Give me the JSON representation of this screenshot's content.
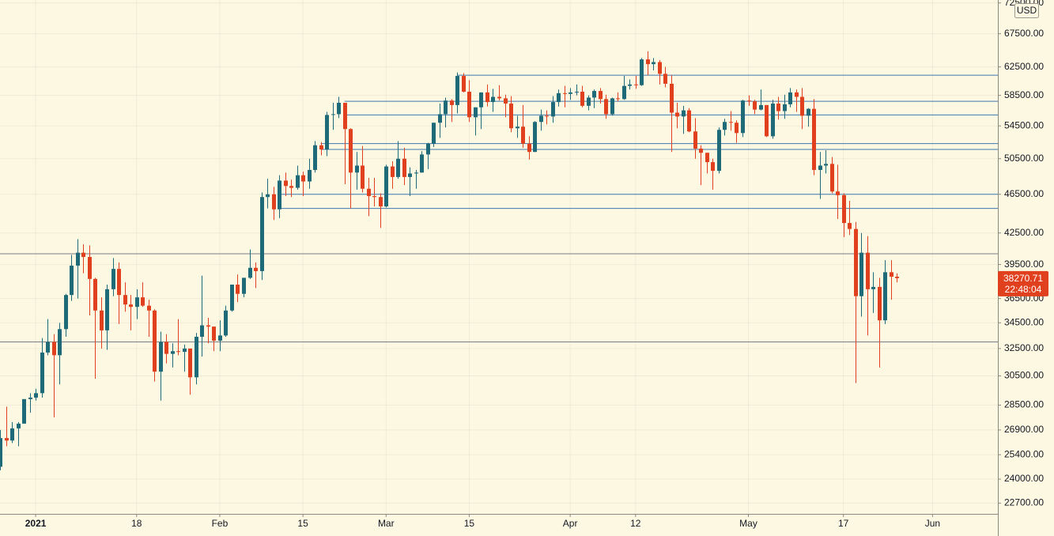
{
  "chart_data": {
    "type": "candlestick",
    "background": "#fdf8e2",
    "up_color": "#1f6a79",
    "down_color": "#e0401d",
    "log_scale": true,
    "grid": true,
    "currency": "USD",
    "countdown": "22:48:04",
    "xlim": [
      "2020-12-26",
      "2021-06-12"
    ],
    "xticks": [
      {
        "value": "2021-01-01",
        "label": "2021"
      },
      {
        "value": "2021-01-18",
        "label": "18"
      },
      {
        "value": "2021-02-01",
        "label": "Feb"
      },
      {
        "value": "2021-02-15",
        "label": "15"
      },
      {
        "value": "2021-03-01",
        "label": "Mar"
      },
      {
        "value": "2021-03-15",
        "label": "15"
      },
      {
        "value": "2021-04-01",
        "label": "Apr"
      },
      {
        "value": "2021-04-12",
        "label": "12"
      },
      {
        "value": "2021-05-01",
        "label": "May"
      },
      {
        "value": "2021-05-17",
        "label": "17"
      },
      {
        "value": "2021-06-01",
        "label": "Jun"
      }
    ],
    "ylim": [
      22140,
      73000
    ],
    "yticks": [
      {
        "value": 72500,
        "label": "72500.00"
      },
      {
        "value": 67500,
        "label": "67500.00"
      },
      {
        "value": 62500,
        "label": "62500.00"
      },
      {
        "value": 58500,
        "label": "58500.00"
      },
      {
        "value": 54500,
        "label": "54500.00"
      },
      {
        "value": 50500,
        "label": "50500.00"
      },
      {
        "value": 46500,
        "label": "46500.00"
      },
      {
        "value": 42500,
        "label": "42500.00"
      },
      {
        "value": 39500,
        "label": "39500.00"
      },
      {
        "value": 36500,
        "label": "36500.00"
      },
      {
        "value": 34500,
        "label": "34500.00"
      },
      {
        "value": 32500,
        "label": "32500.00"
      },
      {
        "value": 30500,
        "label": "30500.00"
      },
      {
        "value": 28500,
        "label": "28500.00"
      },
      {
        "value": 26900,
        "label": "26900.00"
      },
      {
        "value": 25400,
        "label": "25400.00"
      },
      {
        "value": 24000,
        "label": "24000.00"
      },
      {
        "value": 22700,
        "label": "22700.00"
      }
    ],
    "lines": [
      {
        "value": 61300,
        "color": "#3d78b0",
        "start": "2021-03-13"
      },
      {
        "value": 57700,
        "color": "#3d78b0",
        "start": "2021-02-22"
      },
      {
        "value": 55900,
        "color": "#3d78b0",
        "start": "2021-02-22"
      },
      {
        "value": 52300,
        "color": "#3d78b0",
        "start": "2021-02-18"
      },
      {
        "value": 51600,
        "color": "#3d78b0",
        "start": "2021-02-18"
      },
      {
        "value": 46500,
        "color": "#3d78b0",
        "start": "2021-02-11"
      },
      {
        "value": 45000,
        "color": "#3d78b0",
        "start": "2021-02-11"
      },
      {
        "value": 40500,
        "color": "#7b7d85",
        "start": "2020-12-26"
      },
      {
        "value": 33000,
        "color": "#7b7d85",
        "start": "2020-12-26"
      }
    ],
    "x": [
      "2020-12-26",
      "2020-12-27",
      "2020-12-28",
      "2020-12-29",
      "2020-12-30",
      "2020-12-31",
      "2021-01-01",
      "2021-01-02",
      "2021-01-03",
      "2021-01-04",
      "2021-01-05",
      "2021-01-06",
      "2021-01-07",
      "2021-01-08",
      "2021-01-09",
      "2021-01-10",
      "2021-01-11",
      "2021-01-12",
      "2021-01-13",
      "2021-01-14",
      "2021-01-15",
      "2021-01-16",
      "2021-01-17",
      "2021-01-18",
      "2021-01-19",
      "2021-01-20",
      "2021-01-21",
      "2021-01-22",
      "2021-01-23",
      "2021-01-24",
      "2021-01-25",
      "2021-01-26",
      "2021-01-27",
      "2021-01-28",
      "2021-01-29",
      "2021-01-30",
      "2021-01-31",
      "2021-02-01",
      "2021-02-02",
      "2021-02-03",
      "2021-02-04",
      "2021-02-05",
      "2021-02-06",
      "2021-02-07",
      "2021-02-08",
      "2021-02-09",
      "2021-02-10",
      "2021-02-11",
      "2021-02-12",
      "2021-02-13",
      "2021-02-14",
      "2021-02-15",
      "2021-02-16",
      "2021-02-17",
      "2021-02-18",
      "2021-02-19",
      "2021-02-20",
      "2021-02-21",
      "2021-02-22",
      "2021-02-23",
      "2021-02-24",
      "2021-02-25",
      "2021-02-26",
      "2021-02-27",
      "2021-02-28",
      "2021-03-01",
      "2021-03-02",
      "2021-03-03",
      "2021-03-04",
      "2021-03-05",
      "2021-03-06",
      "2021-03-07",
      "2021-03-08",
      "2021-03-09",
      "2021-03-10",
      "2021-03-11",
      "2021-03-12",
      "2021-03-13",
      "2021-03-14",
      "2021-03-15",
      "2021-03-16",
      "2021-03-17",
      "2021-03-18",
      "2021-03-19",
      "2021-03-20",
      "2021-03-21",
      "2021-03-22",
      "2021-03-23",
      "2021-03-24",
      "2021-03-25",
      "2021-03-26",
      "2021-03-27",
      "2021-03-28",
      "2021-03-29",
      "2021-03-30",
      "2021-03-31",
      "2021-04-01",
      "2021-04-02",
      "2021-04-03",
      "2021-04-04",
      "2021-04-05",
      "2021-04-06",
      "2021-04-07",
      "2021-04-08",
      "2021-04-09",
      "2021-04-10",
      "2021-04-11",
      "2021-04-12",
      "2021-04-13",
      "2021-04-14",
      "2021-04-15",
      "2021-04-16",
      "2021-04-17",
      "2021-04-18",
      "2021-04-19",
      "2021-04-20",
      "2021-04-21",
      "2021-04-22",
      "2021-04-23",
      "2021-04-24",
      "2021-04-25",
      "2021-04-26",
      "2021-04-27",
      "2021-04-28",
      "2021-04-29",
      "2021-04-30",
      "2021-05-01",
      "2021-05-02",
      "2021-05-03",
      "2021-05-04",
      "2021-05-05",
      "2021-05-06",
      "2021-05-07",
      "2021-05-08",
      "2021-05-09",
      "2021-05-10",
      "2021-05-11",
      "2021-05-12",
      "2021-05-13",
      "2021-05-14",
      "2021-05-15",
      "2021-05-16",
      "2021-05-17",
      "2021-05-18",
      "2021-05-19",
      "2021-05-20",
      "2021-05-21",
      "2021-05-22",
      "2021-05-23",
      "2021-05-24",
      "2021-05-25",
      "2021-05-26"
    ],
    "open": [
      24700,
      26400,
      26250,
      27000,
      27300,
      28900,
      29000,
      29300,
      32200,
      33000,
      32000,
      34000,
      36800,
      39400,
      40600,
      40200,
      38200,
      35500,
      33900,
      37300,
      39100,
      36800,
      36000,
      35800,
      36600,
      35900,
      35500,
      30800,
      33000,
      32100,
      32300,
      32250,
      32500,
      30400,
      33400,
      34300,
      34200,
      33100,
      33500,
      35500,
      37700,
      36900,
      38300,
      39200,
      38900,
      46200,
      46500,
      44900,
      48000,
      47400,
      47200,
      48600,
      47900,
      49200,
      52100,
      51600,
      55900,
      56000,
      57500,
      54100,
      48900,
      49700,
      47100,
      46300,
      46200,
      45200,
      49600,
      48400,
      50500,
      48400,
      48800,
      48900,
      51000,
      52300,
      54900,
      56000,
      57800,
      57200,
      61200,
      59000,
      55600,
      56900,
      58900,
      57600,
      58300,
      58100,
      57400,
      54200,
      54400,
      52300,
      51300,
      55000,
      55800,
      55700,
      57600,
      58800,
      58700,
      58900,
      59000,
      57100,
      58200,
      59100,
      58000,
      56000,
      58100,
      58000,
      59800,
      60000,
      59900,
      63600,
      62900,
      63200,
      61500,
      60100,
      56200,
      55700,
      56500,
      53800,
      51700,
      51200,
      50100,
      49100,
      54000,
      55000,
      54900,
      53600,
      57800,
      57700,
      56600,
      57200,
      53200,
      57400,
      56400,
      57300,
      58900,
      58300,
      55800,
      56700,
      49200,
      49700,
      49900,
      46800,
      46400,
      43500,
      42900,
      36700,
      40600,
      37300,
      37500,
      34700,
      38800,
      38400
    ],
    "high": [
      26900,
      28400,
      27400,
      27400,
      28900,
      29300,
      29600,
      33300,
      34800,
      33600,
      34500,
      36900,
      40400,
      41900,
      41400,
      41300,
      38300,
      36600,
      37700,
      40100,
      39700,
      37900,
      36800,
      37300,
      37900,
      36400,
      35600,
      33800,
      33600,
      32900,
      34800,
      32800,
      32500,
      33700,
      38500,
      34900,
      34200,
      34700,
      35900,
      37700,
      38600,
      38300,
      40900,
      39700,
      46700,
      48200,
      47300,
      48600,
      48900,
      48100,
      49700,
      49000,
      50500,
      52600,
      52500,
      56300,
      57500,
      58300,
      57500,
      54200,
      51300,
      52000,
      48300,
      48300,
      46600,
      49800,
      50200,
      52600,
      51800,
      49500,
      49200,
      51400,
      52400,
      54900,
      57400,
      58200,
      58000,
      61700,
      61600,
      60600,
      56900,
      58900,
      60000,
      59400,
      59900,
      58600,
      58400,
      55800,
      57200,
      53200,
      55100,
      56600,
      56500,
      58400,
      59300,
      59800,
      59500,
      60000,
      59800,
      58500,
      59300,
      59500,
      58600,
      58200,
      58900,
      61200,
      60700,
      61200,
      63800,
      64800,
      63800,
      63500,
      62500,
      61300,
      57500,
      57100,
      56800,
      55500,
      52100,
      51200,
      50500,
      54300,
      55400,
      56400,
      55200,
      57900,
      58500,
      57900,
      59300,
      57200,
      57900,
      58300,
      58600,
      59500,
      59300,
      59500,
      56800,
      58000,
      51300,
      51500,
      50700,
      49800,
      46600,
      45800,
      43600,
      42500,
      42200,
      38800,
      38300,
      39900,
      39900,
      38700
    ],
    "low": [
      24500,
      25900,
      26100,
      25900,
      27300,
      28000,
      28800,
      29000,
      32000,
      27700,
      29900,
      33400,
      36300,
      36500,
      38700,
      35100,
      30300,
      32500,
      32400,
      36700,
      34400,
      35400,
      33900,
      34800,
      35800,
      33400,
      30100,
      28800,
      31400,
      31100,
      32000,
      30800,
      29200,
      29900,
      31900,
      32900,
      32300,
      32300,
      33400,
      35400,
      36200,
      36600,
      38200,
      37400,
      38100,
      45000,
      43800,
      44000,
      46300,
      46200,
      47000,
      46300,
      47100,
      48900,
      50900,
      50800,
      54000,
      55500,
      47600,
      45000,
      47000,
      46700,
      44200,
      45200,
      43000,
      45100,
      47100,
      48200,
      47500,
      46300,
      47100,
      48900,
      49300,
      51900,
      53000,
      54300,
      55000,
      56100,
      58900,
      55000,
      53300,
      54100,
      57000,
      56300,
      57800,
      55600,
      53700,
      53000,
      51800,
      50400,
      51300,
      53900,
      54700,
      54900,
      57000,
      56900,
      57900,
      58500,
      56900,
      56500,
      56800,
      57400,
      55400,
      55800,
      57700,
      57900,
      59300,
      59400,
      59800,
      61300,
      62000,
      60000,
      59600,
      51300,
      54200,
      53500,
      53700,
      50500,
      47500,
      48800,
      47000,
      48800,
      53300,
      53900,
      52400,
      53100,
      57100,
      56000,
      56500,
      53100,
      52900,
      55300,
      55400,
      56900,
      56300,
      54100,
      54400,
      48600,
      46000,
      48800,
      46600,
      43900,
      42100,
      42300,
      30000,
      35000,
      33500,
      35300,
      31100,
      34400,
      36400,
      37900
    ],
    "close": [
      26400,
      26250,
      27000,
      27300,
      28900,
      29000,
      29300,
      32200,
      33000,
      32000,
      34000,
      36800,
      39400,
      40600,
      40200,
      38200,
      35500,
      33900,
      37300,
      39100,
      36800,
      36000,
      35800,
      36600,
      35900,
      35500,
      30800,
      33000,
      32100,
      32300,
      32250,
      32500,
      30400,
      33400,
      34300,
      34200,
      33100,
      33500,
      35500,
      37700,
      36900,
      38300,
      39200,
      38900,
      46200,
      46500,
      44900,
      48000,
      47400,
      47200,
      48600,
      47900,
      49200,
      52100,
      51600,
      55900,
      56000,
      57500,
      54100,
      48900,
      49700,
      47100,
      46300,
      46200,
      45200,
      49600,
      48400,
      50500,
      48400,
      48800,
      48900,
      51000,
      52300,
      54900,
      56000,
      57800,
      57200,
      61200,
      59000,
      55600,
      56900,
      58900,
      57600,
      58300,
      58100,
      57400,
      54200,
      54400,
      52300,
      51300,
      55000,
      55800,
      55700,
      57600,
      58800,
      58700,
      58900,
      59000,
      57100,
      58200,
      59100,
      58000,
      56000,
      58100,
      58000,
      59800,
      60000,
      59900,
      63600,
      62900,
      63200,
      61500,
      60100,
      56200,
      55700,
      56500,
      53800,
      51700,
      51200,
      50100,
      49100,
      54000,
      55000,
      54900,
      53600,
      57800,
      57700,
      56600,
      57200,
      53200,
      57400,
      56400,
      57300,
      58900,
      58300,
      55800,
      56700,
      49200,
      49700,
      49900,
      46800,
      46400,
      43500,
      42900,
      36700,
      40600,
      37300,
      37500,
      34700,
      38800,
      38400,
      38270.71
    ]
  }
}
